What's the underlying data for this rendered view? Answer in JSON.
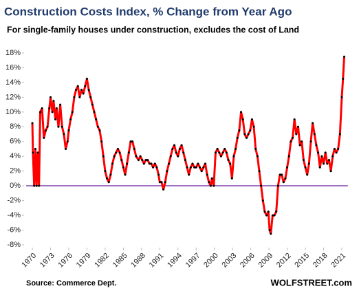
{
  "chart_data": {
    "type": "line",
    "title": "Construction  Costs Index, % Change from Year Ago",
    "subtitle": "For single-family houses under construction, excludes the cost of Land",
    "source": "Source: Commerce Dept.",
    "brand": "WOLFSTREET.com",
    "x": [
      1970.0,
      1970.1,
      1970.3,
      1970.5,
      1970.7,
      1970.9,
      1971.1,
      1971.3,
      1971.6,
      1971.9,
      1972.2,
      1972.5,
      1972.8,
      1973.0,
      1973.3,
      1973.5,
      1973.8,
      1974.0,
      1974.3,
      1974.6,
      1974.9,
      1975.2,
      1975.5,
      1975.8,
      1976.0,
      1976.3,
      1976.6,
      1976.9,
      1977.2,
      1977.5,
      1977.8,
      1978.1,
      1978.4,
      1978.7,
      1979.0,
      1979.3,
      1979.6,
      1979.9,
      1980.2,
      1980.5,
      1980.8,
      1981.1,
      1981.4,
      1981.7,
      1982.0,
      1982.3,
      1982.6,
      1982.9,
      1983.2,
      1983.5,
      1983.8,
      1984.1,
      1984.4,
      1984.7,
      1985.0,
      1985.3,
      1985.6,
      1985.9,
      1986.2,
      1986.5,
      1986.8,
      1987.1,
      1987.5,
      1987.8,
      1988.1,
      1988.4,
      1988.7,
      1989.0,
      1989.3,
      1989.6,
      1989.9,
      1990.2,
      1990.5,
      1990.8,
      1991.0,
      1991.3,
      1991.6,
      1991.9,
      1992.2,
      1992.5,
      1992.8,
      1993.1,
      1993.4,
      1993.7,
      1994.0,
      1994.3,
      1994.6,
      1994.9,
      1995.2,
      1995.5,
      1995.8,
      1996.1,
      1996.4,
      1996.7,
      1997.0,
      1997.3,
      1997.6,
      1997.9,
      1998.2,
      1998.5,
      1998.8,
      1999.1,
      1999.4,
      1999.6,
      1999.9,
      2000.2,
      2000.5,
      2000.8,
      2001.1,
      2001.4,
      2001.7,
      2002.0,
      2002.3,
      2002.6,
      2002.9,
      2003.2,
      2003.5,
      2003.8,
      2004.1,
      2004.4,
      2004.7,
      2005.0,
      2005.3,
      2005.6,
      2005.9,
      2006.2,
      2006.5,
      2006.8,
      2007.1,
      2007.4,
      2007.7,
      2008.0,
      2008.3,
      2008.6,
      2008.9,
      2009.1,
      2009.3,
      2009.6,
      2009.9,
      2010.2,
      2010.5,
      2010.8,
      2011.1,
      2011.4,
      2011.7,
      2012.0,
      2012.3,
      2012.6,
      2012.9,
      2013.2,
      2013.5,
      2013.8,
      2014.1,
      2014.4,
      2014.7,
      2015.0,
      2015.3,
      2015.6,
      2015.9,
      2016.2,
      2016.5,
      2016.8,
      2017.1,
      2017.4,
      2017.7,
      2018.0,
      2018.3,
      2018.6,
      2018.9,
      2019.2,
      2019.5,
      2019.8,
      2020.1,
      2020.4,
      2020.7,
      2021.0,
      2021.2,
      2021.4
    ],
    "values": [
      8.5,
      4.5,
      0,
      5,
      0,
      4.5,
      0,
      10,
      10.5,
      6.5,
      7.5,
      8,
      10.5,
      12,
      10,
      11.5,
      9,
      10.5,
      8,
      11,
      8,
      7,
      5,
      6,
      7.5,
      9,
      10,
      12,
      13,
      13.5,
      12,
      13,
      12.5,
      13.5,
      14.5,
      13,
      12,
      11,
      10,
      9,
      8,
      7.5,
      6,
      4,
      2,
      1,
      0.5,
      1.5,
      3,
      4,
      4.5,
      5,
      4.5,
      3.5,
      2.5,
      1.5,
      3,
      4.5,
      6,
      6,
      5,
      4,
      3.5,
      4,
      3.5,
      3,
      3.5,
      3.5,
      3,
      3,
      2.5,
      3,
      2.5,
      1.5,
      0.5,
      0.5,
      -0.5,
      0.5,
      2,
      3,
      4,
      5,
      5.5,
      4.5,
      4,
      5,
      5.5,
      4.5,
      3.5,
      2.5,
      1.5,
      2.5,
      3,
      2.5,
      2.5,
      3,
      2.5,
      2,
      2.5,
      3,
      1.5,
      0.5,
      0,
      1,
      0,
      4.5,
      5,
      4.5,
      4,
      4.5,
      5,
      4.5,
      3.5,
      3,
      1,
      4,
      5,
      6.5,
      7.5,
      10,
      9,
      7,
      6.5,
      7,
      7.5,
      9,
      8,
      5,
      4,
      2,
      0,
      -2,
      -3.5,
      -4,
      -3.5,
      -6,
      -6.5,
      -4,
      -4,
      -3.5,
      0,
      1.5,
      1.5,
      0.5,
      1,
      2.5,
      4,
      6,
      6.5,
      9,
      7,
      8,
      5.5,
      6,
      3.5,
      2.5,
      1.5,
      3,
      6,
      8.5,
      7,
      5.5,
      4.5,
      2.5,
      4,
      3,
      4.5,
      3,
      3.5,
      2,
      4,
      5,
      4.5,
      5,
      7,
      12,
      14.5,
      17.5
    ],
    "line_color": "#ff0000",
    "marker_color": "#000000",
    "reference_line": {
      "value": 0,
      "color": "#7030a0"
    },
    "xlim": [
      1969.6,
      2022
    ],
    "xticks": [
      1970,
      1973,
      1976,
      1979,
      1982,
      1985,
      1988,
      1991,
      1994,
      1997,
      2000,
      2003,
      2006,
      2009,
      2012,
      2015,
      2018,
      2021
    ],
    "ylim": [
      -8,
      18
    ],
    "yticks": [
      {
        "value": -8,
        "label": "-8%"
      },
      {
        "value": -6,
        "label": "-6%"
      },
      {
        "value": -4,
        "label": "-4%"
      },
      {
        "value": -2,
        "label": "-2%"
      },
      {
        "value": 0,
        "label": "0%"
      },
      {
        "value": 2,
        "label": "2%"
      },
      {
        "value": 4,
        "label": "4%"
      },
      {
        "value": 6,
        "label": "6%"
      },
      {
        "value": 8,
        "label": "8%"
      },
      {
        "value": 10,
        "label": "10%"
      },
      {
        "value": 12,
        "label": "12%"
      },
      {
        "value": 14,
        "label": "14%"
      },
      {
        "value": 16,
        "label": "16%"
      },
      {
        "value": 18,
        "label": "18%"
      }
    ],
    "grid": false
  }
}
